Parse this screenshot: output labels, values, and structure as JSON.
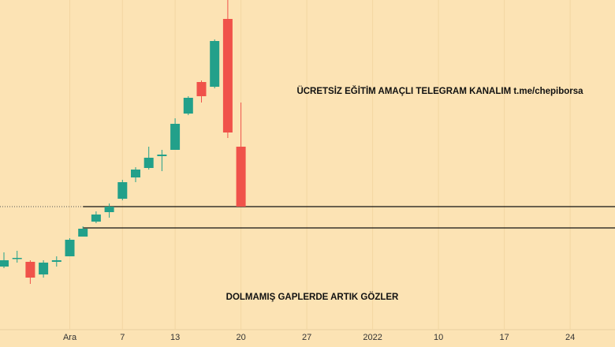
{
  "chart_data": {
    "type": "candlestick",
    "categories": [
      null,
      null,
      null,
      null,
      null,
      "Ara",
      null,
      null,
      null,
      "7",
      null,
      null,
      null,
      "13",
      null,
      null,
      null,
      null,
      "20",
      null,
      null,
      null,
      null,
      "27",
      null,
      null,
      null,
      null,
      "2022",
      null,
      null,
      null,
      null,
      "10",
      null,
      null,
      null,
      null,
      "17",
      null,
      null,
      null,
      null,
      "24",
      null,
      null,
      null
    ],
    "open": [
      102,
      112,
      108,
      92,
      108,
      115,
      140,
      159,
      171,
      188,
      215,
      227,
      242,
      250,
      296,
      336,
      330,
      416,
      254,
      null,
      null,
      null,
      null,
      null,
      null,
      null,
      null,
      null,
      null,
      null,
      null,
      null,
      null,
      null,
      null,
      null,
      null,
      null,
      null,
      null,
      null,
      null,
      null,
      null,
      null,
      null,
      null
    ],
    "high": [
      120,
      122,
      110,
      110,
      115,
      138,
      153,
      172,
      182,
      212,
      228,
      254,
      250,
      290,
      318,
      338,
      390,
      440,
      310,
      null,
      null,
      null,
      null,
      null,
      null,
      null,
      null,
      null,
      null,
      null,
      null,
      null,
      null,
      null,
      null,
      null,
      null,
      null,
      null,
      null,
      null,
      null,
      null,
      null,
      null,
      null,
      null
    ],
    "low": [
      100,
      107,
      80,
      88,
      102,
      115,
      140,
      157,
      164,
      186,
      209,
      225,
      223,
      250,
      294,
      310,
      328,
      265,
      178,
      null,
      null,
      null,
      null,
      null,
      null,
      null,
      null,
      null,
      null,
      null,
      null,
      null,
      null,
      null,
      null,
      null,
      null,
      null,
      null,
      null,
      null,
      null,
      null,
      null,
      null,
      null,
      null
    ],
    "close": [
      110,
      113,
      88,
      107,
      110,
      136,
      150,
      168,
      178,
      209,
      225,
      240,
      244,
      283,
      316,
      318,
      388,
      272,
      178,
      null,
      null,
      null,
      null,
      null,
      null,
      null,
      null,
      null,
      null,
      null,
      null,
      null,
      null,
      null,
      null,
      null,
      null,
      null,
      null,
      null,
      null,
      null,
      null,
      null,
      null,
      null,
      null
    ],
    "up_color": "#22a08a",
    "down_color": "#f0524a",
    "ylim": [
      0,
      440
    ],
    "levels": [
      178,
      151
    ],
    "annotations": [
      "ÜCRETSİZ EĞİTİM AMAÇLI TELEGRAM KANALIM  t.me/chepiborsa",
      "DOLMAMIŞ GAPLERDE ARTIK GÖZLER"
    ],
    "grid": true
  }
}
